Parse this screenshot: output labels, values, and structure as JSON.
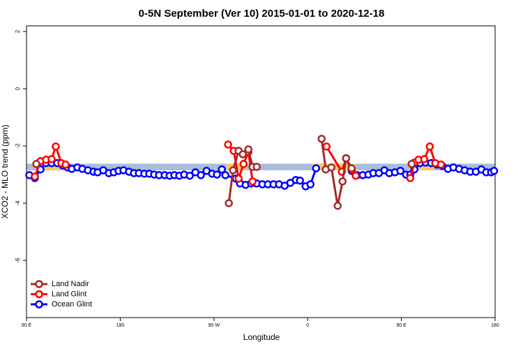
{
  "chart_data": {
    "type": "line",
    "title": "0-5N September (Ver 10)   2015-01-01 to 2020-12-18",
    "xlabel": "Longitude",
    "ylabel": "XCO2 - MLO trend (ppm)",
    "xlim": [
      90,
      540
    ],
    "ylim": [
      -8,
      2.2
    ],
    "xticks": [
      {
        "value": 90,
        "label": "90 E"
      },
      180,
      {
        "value": 270,
        "label": "90 W"
      },
      {
        "value": 360,
        "label": "0"
      },
      {
        "value": 450,
        "label": "90 E"
      },
      {
        "value": 540,
        "label": "180"
      }
    ],
    "yticks": [
      2,
      0,
      -2,
      -4,
      -6
    ],
    "legend": "bottom-left",
    "band": {
      "y": [
        -2.62,
        -2.85
      ],
      "color": "#a9bedd"
    },
    "highlights": {
      "color": "#f5c96b",
      "x": [
        [
          104.7,
          121.5
        ],
        [
          282,
          302
        ],
        [
          364.7,
          406.2
        ],
        [
          461,
          481
        ]
      ]
    },
    "series": [
      {
        "name": "Land Nadir",
        "color": "#a52a2a",
        "x": [
          99.4,
          200,
          284.3,
          288.3,
          293.7,
          297.7,
          303.1,
          307.1,
          311.1,
          340,
          373.4,
          377.4,
          382.8,
          388.8,
          393.5,
          396.9,
          402.2,
          430,
          459.8
        ],
        "values": [
          -2.63,
          null,
          -4.0,
          -2.85,
          -2.17,
          -2.29,
          -2.12,
          -2.73,
          -2.73,
          null,
          -1.75,
          -2.82,
          -2.75,
          -4.09,
          -3.24,
          -2.43,
          -2.78,
          null,
          -2.63
        ]
      },
      {
        "name": "Land Glint",
        "color": "#ff0000",
        "x": [
          98,
          103.4,
          108.8,
          114.1,
          118.1,
          123.5,
          127.5,
          200,
          283.6,
          289,
          293.7,
          298.4,
          303.1,
          307.1,
          340,
          378.1,
          392.8,
          396.9,
          402.2,
          406.2,
          430,
          458.5,
          462.5,
          466.5,
          471.9,
          477.3,
          482.6,
          488
        ],
        "values": [
          -3.07,
          -2.53,
          -2.48,
          -2.46,
          -2.02,
          -2.6,
          -2.65,
          null,
          -1.95,
          -2.17,
          -3.14,
          -2.63,
          -2.21,
          -3.24,
          null,
          -2.02,
          -2.9,
          -2.43,
          -2.82,
          -3.04,
          null,
          -3.12,
          -2.58,
          -2.48,
          -2.46,
          -2.02,
          -2.6,
          -2.65
        ]
      },
      {
        "name": "Ocean Glint",
        "color": "#0000ff",
        "x": [
          92.7,
          98,
          103.4,
          108.8,
          114.1,
          119.5,
          124.8,
          129.5,
          133.5,
          138.9,
          143.6,
          149,
          154.3,
          158.3,
          163.7,
          169,
          173.8,
          178.4,
          183.1,
          188.5,
          193.2,
          197.9,
          203.2,
          207.9,
          212.6,
          217.3,
          222.7,
          227.4,
          232,
          236.7,
          241.4,
          246.8,
          252.2,
          257.5,
          262.9,
          268.2,
          272.9,
          277.6,
          281,
          291,
          295,
          300.4,
          305.7,
          311.1,
          316.5,
          321.8,
          327.2,
          332.5,
          337.9,
          343.3,
          348.6,
          352.6,
          358,
          362.7,
          368.1,
          382,
          396.9,
          402.2,
          407.6,
          412.9,
          418.3,
          423,
          428.4,
          433.7,
          438.4,
          443.8,
          449.1,
          454.5,
          458.5,
          462.5,
          467.9,
          473.2,
          478.6,
          484,
          489.3,
          494.7,
          500,
          505.4,
          510.8,
          516.1,
          521.5,
          526.8,
          531.5,
          536.2,
          539
        ],
        "values": [
          -3.02,
          -3.12,
          -2.82,
          -2.6,
          -2.6,
          -2.6,
          -2.68,
          -2.75,
          -2.8,
          -2.75,
          -2.8,
          -2.85,
          -2.9,
          -2.92,
          -2.85,
          -2.95,
          -2.92,
          -2.87,
          -2.85,
          -2.9,
          -2.95,
          -2.95,
          -2.97,
          -2.97,
          -3.0,
          -3.02,
          -3.02,
          -3.04,
          -3.02,
          -3.04,
          -3.0,
          -3.04,
          -2.92,
          -3.02,
          -2.87,
          -2.97,
          -3.0,
          -2.82,
          -3.02,
          -3.14,
          -3.31,
          -3.36,
          -3.31,
          -3.31,
          -3.34,
          -3.34,
          -3.34,
          -3.34,
          -3.39,
          -3.29,
          -3.19,
          -3.21,
          -3.41,
          -3.34,
          -2.78,
          null,
          -2.43,
          -2.87,
          -3.02,
          -3.02,
          -3.0,
          -2.95,
          -2.95,
          -2.85,
          -2.95,
          -2.92,
          -2.87,
          -3.0,
          -3.0,
          -2.82,
          -2.6,
          -2.58,
          -2.6,
          -2.65,
          -2.7,
          -2.8,
          -2.75,
          -2.8,
          -2.85,
          -2.9,
          -2.9,
          -2.82,
          -2.92,
          -2.92,
          -2.87
        ]
      }
    ]
  }
}
